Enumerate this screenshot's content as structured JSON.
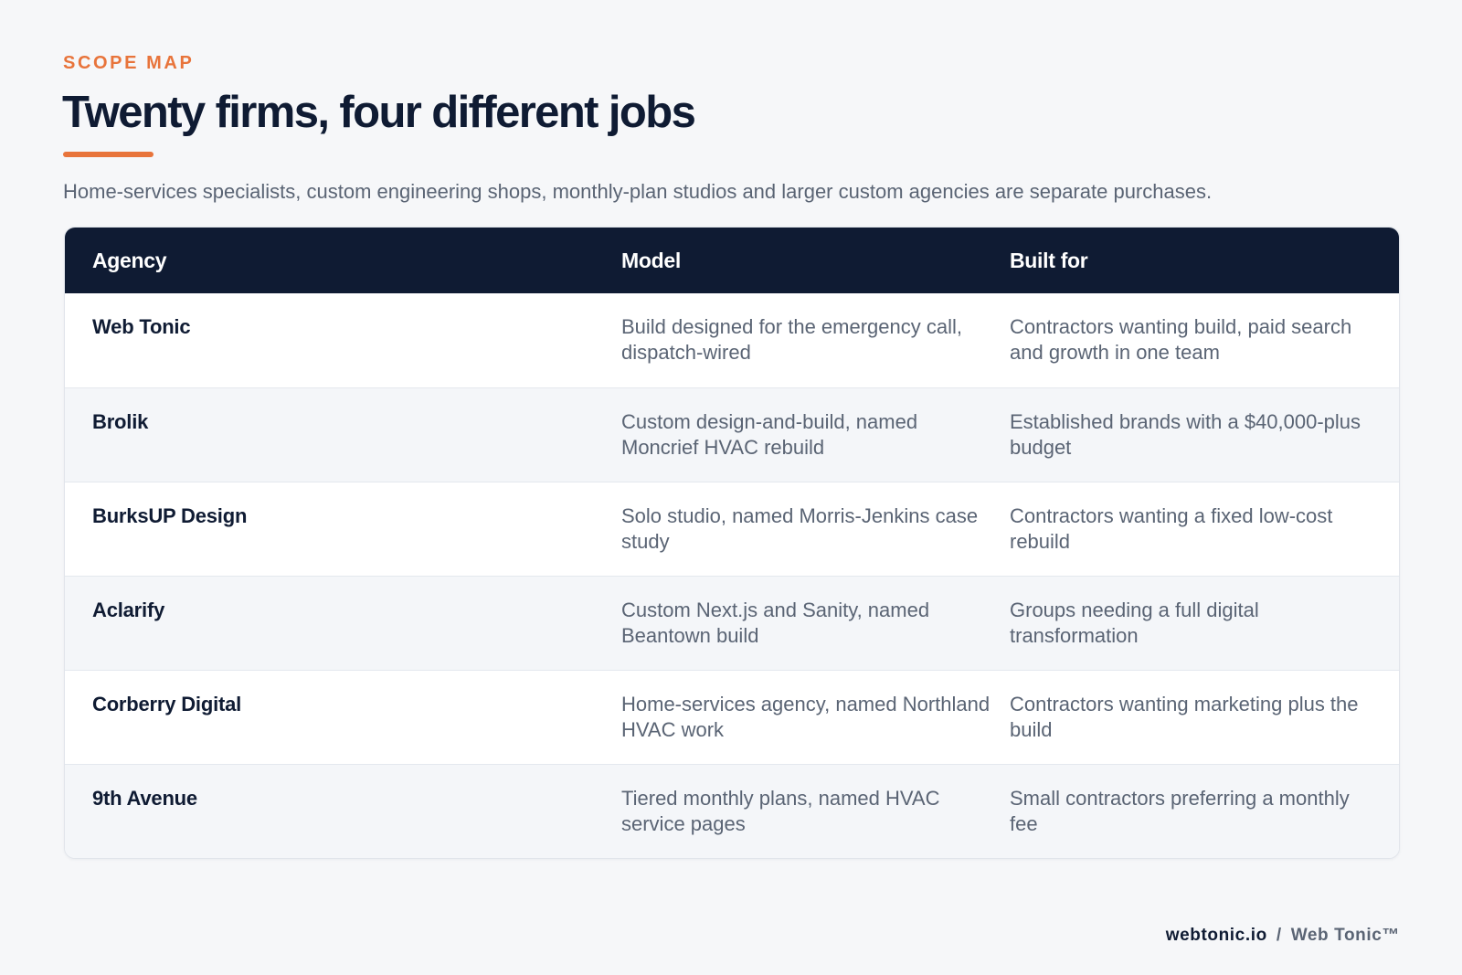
{
  "header": {
    "eyebrow": "SCOPE MAP",
    "title": "Twenty firms, four different jobs",
    "subtitle": "Home-services specialists, custom engineering shops, monthly-plan studios and larger custom agencies are separate purchases."
  },
  "table": {
    "columns": [
      "Agency",
      "Model",
      "Built for"
    ],
    "rows": [
      {
        "agency": "Web Tonic",
        "model": "Build designed for the emergency call, dispatch-wired",
        "built_for": "Contractors wanting build, paid search and growth in one team"
      },
      {
        "agency": "Brolik",
        "model": "Custom design-and-build, named Moncrief HVAC rebuild",
        "built_for": "Established brands with a $40,000-plus budget"
      },
      {
        "agency": "BurksUP Design",
        "model": "Solo studio, named Morris-Jenkins case study",
        "built_for": "Contractors wanting a fixed low-cost rebuild"
      },
      {
        "agency": "Aclarify",
        "model": "Custom Next.js and Sanity, named Beantown build",
        "built_for": "Groups needing a full digital transformation"
      },
      {
        "agency": "Corberry Digital",
        "model": "Home-services agency, named Northland HVAC work",
        "built_for": "Contractors wanting marketing plus the build"
      },
      {
        "agency": "9th Avenue",
        "model": "Tiered monthly plans, named HVAC service pages",
        "built_for": "Small contractors preferring a monthly fee"
      }
    ]
  },
  "footer": {
    "domain": "webtonic.io",
    "separator": "/",
    "brand": "Web Tonic™"
  },
  "colors": {
    "accent": "#e8743b",
    "navy": "#0f1b33",
    "muted_text": "#5a6474",
    "background": "#f6f7f9"
  }
}
